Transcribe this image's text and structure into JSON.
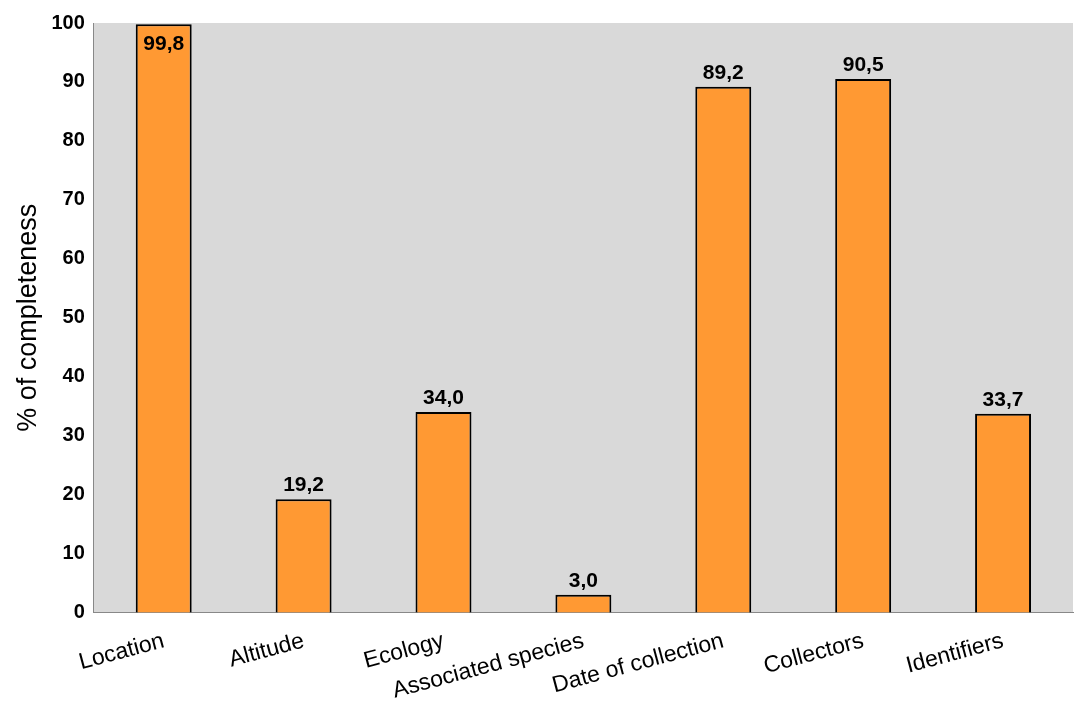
{
  "chart_data": {
    "type": "bar",
    "ylabel": "% of completeness",
    "categories": [
      "Location",
      "Altitude",
      "Ecology",
      "Associated species",
      "Date of collection",
      "Collectors",
      "Identifiers"
    ],
    "values": [
      99.8,
      19.2,
      34.0,
      3.0,
      89.2,
      90.5,
      33.7
    ],
    "value_labels": [
      "99,8",
      "19,2",
      "34,0",
      "3,0",
      "89,2",
      "90,5",
      "33,7"
    ],
    "color": "#ff9933",
    "ylim": [
      0,
      100
    ],
    "yticks": [
      0,
      10,
      20,
      30,
      40,
      50,
      60,
      70,
      80,
      90,
      100
    ],
    "grid": false,
    "legend": false
  }
}
